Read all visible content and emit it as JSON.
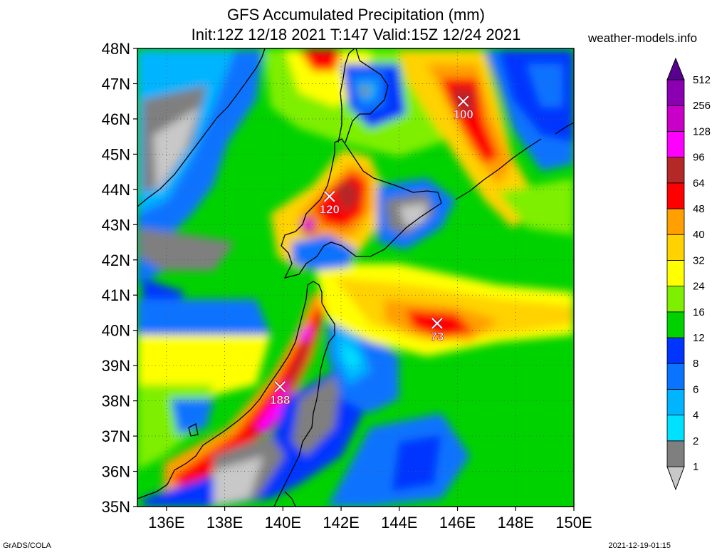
{
  "header": {
    "title": "GFS Accumulated Precipitation (mm)",
    "subtitle": "Init:12Z 12/18 2021 T:147 Valid:15Z 12/24 2021",
    "source": "weather-models.info"
  },
  "footer": {
    "left": "GrADS/COLA",
    "right": "2021-12-19-01:15"
  },
  "chart_data": {
    "type": "heatmap",
    "title": "GFS Accumulated Precipitation (mm)",
    "subtitle": "Init:12Z 12/18 2021 T:147 Valid:15Z 12/24 2021",
    "x_ticks": [
      "136E",
      "138E",
      "140E",
      "142E",
      "144E",
      "146E",
      "148E",
      "150E"
    ],
    "x_values": [
      136,
      138,
      140,
      142,
      144,
      146,
      148,
      150
    ],
    "y_ticks": [
      "35N",
      "36N",
      "37N",
      "38N",
      "39N",
      "40N",
      "41N",
      "42N",
      "43N",
      "44N",
      "45N",
      "46N",
      "47N",
      "48N"
    ],
    "y_values": [
      35,
      36,
      37,
      38,
      39,
      40,
      41,
      42,
      43,
      44,
      45,
      46,
      47,
      48
    ],
    "xlim": [
      135,
      150
    ],
    "ylim": [
      35,
      48
    ],
    "grid": true,
    "colorbar": {
      "labels": [
        "1",
        "2",
        "4",
        "6",
        "8",
        "12",
        "16",
        "24",
        "32",
        "40",
        "48",
        "64",
        "96",
        "128",
        "256",
        "512"
      ],
      "colors": [
        "#c8c8c8",
        "#7f7f7f",
        "#00e0ff",
        "#00b4ff",
        "#0a73ff",
        "#0034ff",
        "#00d200",
        "#7fef00",
        "#ffff00",
        "#ffd200",
        "#ff9f00",
        "#ff0000",
        "#b42828",
        "#ff00ff",
        "#c800c8",
        "#8c00b4",
        "#5a0091"
      ]
    },
    "maxima": [
      {
        "label": "188",
        "lon": 139.9,
        "lat": 38.4
      },
      {
        "label": "120",
        "lon": 141.6,
        "lat": 43.8
      },
      {
        "label": "100",
        "lon": 146.2,
        "lat": 46.5
      },
      {
        "label": "73",
        "lon": 145.3,
        "lat": 40.2
      }
    ]
  }
}
